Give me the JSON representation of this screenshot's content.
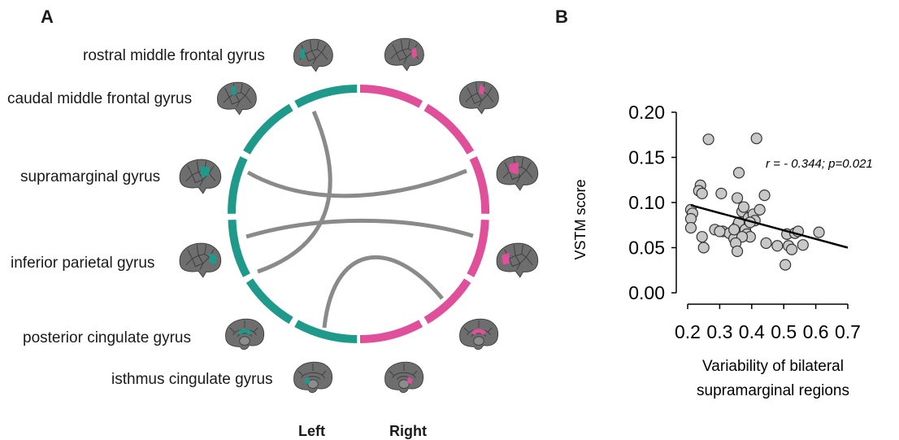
{
  "panel_a": {
    "letter": "A",
    "labels": {
      "rostral": "rostral middle frontal gyrus",
      "caudal": "caudal middle frontal gyrus",
      "supramarginal": "supramarginal gyrus",
      "inferior_parietal": "inferior parietal gyrus",
      "posterior_cingulate": "posterior cingulate gyrus",
      "isthmus_cingulate": "isthmus cingulate gyrus"
    },
    "left_label": "Left",
    "right_label": "Right",
    "colors": {
      "left": "#1f9a8a",
      "right": "#e0509a",
      "connection": "#8a8a8a",
      "brain": "#6e6e6e"
    }
  },
  "panel_b": {
    "letter": "B",
    "annotation": "r = - 0.344; p=0.021",
    "xlabel_line1": "Variability of bilateral",
    "xlabel_line2": "supramarginal regions"
  },
  "chart_data": {
    "type": "scatter",
    "title": "",
    "xlabel": "Variability of bilateral supramarginal regions",
    "ylabel": "VSTM score",
    "xlim": [
      0.2,
      0.7
    ],
    "ylim": [
      0.0,
      0.2
    ],
    "x_ticks": [
      "0.2",
      "0.3",
      "0.4",
      "0.5",
      "0.6",
      "0.7"
    ],
    "y_ticks": [
      "0.00",
      "0.05",
      "0.10",
      "0.15",
      "0.20"
    ],
    "grid": false,
    "points": [
      [
        0.265,
        0.17
      ],
      [
        0.415,
        0.171
      ],
      [
        0.36,
        0.133
      ],
      [
        0.24,
        0.119
      ],
      [
        0.235,
        0.113
      ],
      [
        0.245,
        0.11
      ],
      [
        0.305,
        0.11
      ],
      [
        0.355,
        0.105
      ],
      [
        0.44,
        0.108
      ],
      [
        0.21,
        0.092
      ],
      [
        0.215,
        0.088
      ],
      [
        0.21,
        0.082
      ],
      [
        0.21,
        0.072
      ],
      [
        0.245,
        0.062
      ],
      [
        0.25,
        0.05
      ],
      [
        0.285,
        0.07
      ],
      [
        0.31,
        0.068
      ],
      [
        0.33,
        0.066
      ],
      [
        0.345,
        0.06
      ],
      [
        0.355,
        0.074
      ],
      [
        0.36,
        0.078
      ],
      [
        0.37,
        0.09
      ],
      [
        0.375,
        0.095
      ],
      [
        0.38,
        0.07
      ],
      [
        0.39,
        0.083
      ],
      [
        0.385,
        0.065
      ],
      [
        0.395,
        0.062
      ],
      [
        0.405,
        0.087
      ],
      [
        0.41,
        0.08
      ],
      [
        0.395,
        0.078
      ],
      [
        0.425,
        0.092
      ],
      [
        0.37,
        0.062
      ],
      [
        0.35,
        0.055
      ],
      [
        0.355,
        0.046
      ],
      [
        0.345,
        0.07
      ],
      [
        0.445,
        0.055
      ],
      [
        0.48,
        0.052
      ],
      [
        0.51,
        0.065
      ],
      [
        0.515,
        0.052
      ],
      [
        0.525,
        0.048
      ],
      [
        0.535,
        0.066
      ],
      [
        0.545,
        0.068
      ],
      [
        0.56,
        0.053
      ],
      [
        0.61,
        0.067
      ],
      [
        0.505,
        0.031
      ],
      [
        0.3,
        0.068
      ]
    ],
    "fit_line": {
      "x": [
        0.21,
        0.7
      ],
      "y": [
        0.097,
        0.05
      ]
    }
  }
}
